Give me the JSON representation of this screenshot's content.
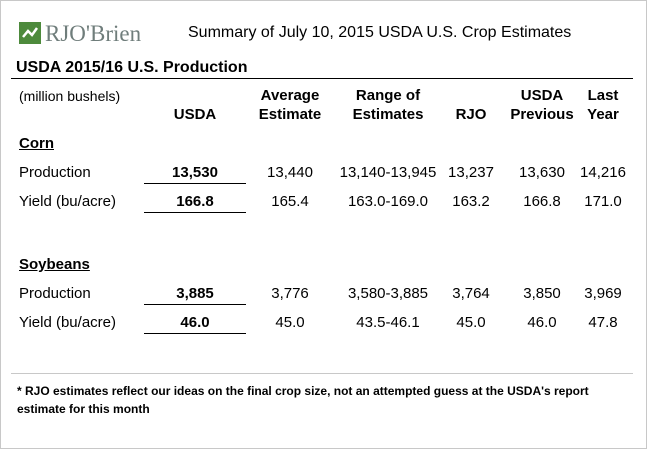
{
  "header": {
    "logo": "RJO'Brien",
    "title": "Summary of July 10, 2015 USDA U.S. Crop Estimates"
  },
  "section_title": "USDA 2015/16 U.S. Production",
  "table": {
    "units": "(million bushels)",
    "columns": [
      [
        "USDA"
      ],
      [
        "Average",
        "Estimate"
      ],
      [
        "Range of",
        "Estimates"
      ],
      [
        "RJO"
      ],
      [
        "USDA",
        "Previous"
      ],
      [
        "Last",
        "Year"
      ]
    ],
    "groups": [
      {
        "name": "Corn",
        "rows": [
          [
            "Production",
            "13,530",
            "13,440",
            "13,140-13,945",
            "13,237",
            "13,630",
            "14,216"
          ],
          [
            "Yield (bu/acre)",
            "166.8",
            "165.4",
            "163.0-169.0",
            "163.2",
            "166.8",
            "171.0"
          ]
        ]
      },
      {
        "name": "Soybeans",
        "rows": [
          [
            "Production",
            "3,885",
            "3,776",
            "3,580-3,885",
            "3,764",
            "3,850",
            "3,969"
          ],
          [
            "Yield (bu/acre)",
            "46.0",
            "45.0",
            "43.5-46.1",
            "45.0",
            "46.0",
            "47.8"
          ]
        ]
      }
    ]
  },
  "footnote": "* RJO estimates reflect our ideas on the final crop size, not an attempted guess at the USDA's report estimate for this month"
}
